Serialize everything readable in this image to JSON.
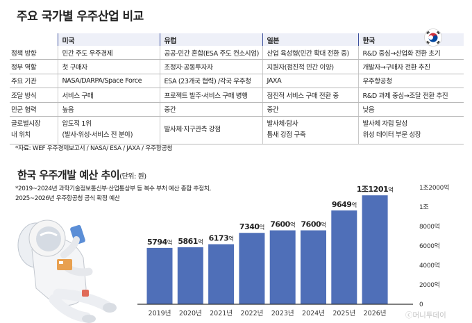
{
  "header": {
    "title": "주요 국가별 우주산업 비교"
  },
  "table": {
    "countries": [
      "미국",
      "유럽",
      "일본",
      "한국"
    ],
    "rows": [
      {
        "label": "정책 방향",
        "cells": [
          "민간 주도 우주경제",
          "공공-민간 혼합(ESA 주도 컨소시엄)",
          "산업 육성형(민간 확대 전환 중)",
          "R&D 중심→산업화 전환 초기"
        ]
      },
      {
        "label": "정부 역할",
        "cells": [
          "첫 구매자",
          "조정자·공동투자자",
          "지원자(점진적 민간 이양)",
          "개발자→구매자 전환 추진"
        ]
      },
      {
        "label": "주요 기관",
        "cells": [
          "NASA/DARPA/Space Force",
          "ESA (23개국 협력) /각국 우주청",
          "JAXA",
          "우주항공청"
        ]
      },
      {
        "label": "조달 방식",
        "cells": [
          "서비스 구매",
          "프로젝트 발주·서비스 구매 병행",
          "점진적 서비스 구매 전환 중",
          "R&D 과제 중심→조달 전환 추진"
        ]
      },
      {
        "label": "민군 협력",
        "cells": [
          "높음",
          "중간",
          "중간",
          "낮음"
        ]
      }
    ],
    "global_position": {
      "label_line1": "글로벌시장",
      "label_line2": "내 위치",
      "usa": [
        "압도적 1위",
        "(발사·위성·서비스 전 분야)"
      ],
      "europe": [
        "발사체·지구관측 강점"
      ],
      "japan": [
        "발사체·탐사",
        "틈새 강점 구축"
      ],
      "korea": [
        "발사체 자립 달성",
        "위성 데이터 부문 성장"
      ]
    },
    "source": "*자료: WEF 우주경제보고서 / NASA/ ESA / JAXA / 우주항공청"
  },
  "chart": {
    "title": "한국 우주개발 예산 추이",
    "unit_note": "(단위: 원)",
    "note_line1": "*2019~2024년 과학기술정보통신부·산업통상부 등 복수 부처 예산 종합 추정치,",
    "note_line2": "2025~2026년 우주항공청 공식 확정 예산"
  },
  "chart_data": {
    "type": "bar",
    "title": "한국 우주개발 예산 추이",
    "categories": [
      "2019년",
      "2020년",
      "2021년",
      "2022년",
      "2023년",
      "2024년",
      "2025년",
      "2026년"
    ],
    "values": [
      5794,
      5861,
      6173,
      7340,
      7600,
      7600,
      9649,
      11201
    ],
    "value_labels": [
      {
        "num": "5794",
        "unit": "억"
      },
      {
        "num": "5861",
        "unit": "억"
      },
      {
        "num": "6173",
        "unit": "억"
      },
      {
        "num": "7340",
        "unit": "억"
      },
      {
        "num": "7600",
        "unit": "억"
      },
      {
        "num": "7600",
        "unit": "억"
      },
      {
        "num": "9649",
        "unit": "억"
      },
      {
        "num": "1조1201",
        "unit": "억"
      }
    ],
    "ylim": [
      0,
      12000
    ],
    "yticks": [
      0,
      2000,
      4000,
      6000,
      8000,
      10000,
      12000
    ],
    "ytick_labels": [
      "0",
      "2000억",
      "4000억",
      "6000억",
      "8000억",
      "1조",
      "1조2000억"
    ],
    "grid": false,
    "colors": {
      "bar": "#4f6fb8",
      "axis": "#333333"
    }
  },
  "watermark": "ⓒ머니투데이"
}
